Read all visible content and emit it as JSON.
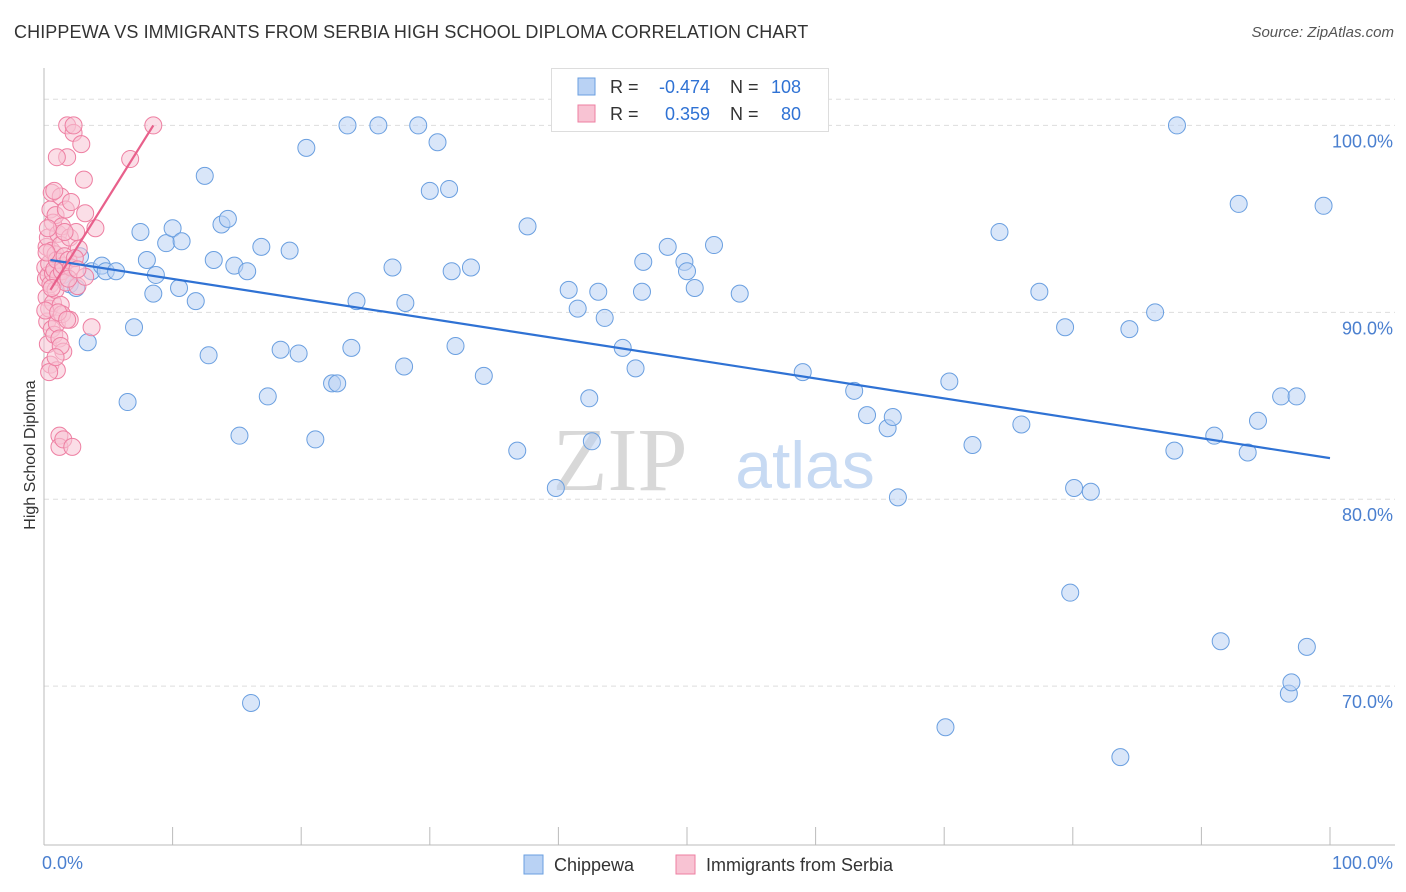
{
  "title": "CHIPPEWA VS IMMIGRANTS FROM SERBIA HIGH SCHOOL DIPLOMA CORRELATION CHART",
  "source": "Source: ZipAtlas.com",
  "watermark": {
    "zip": "ZIP",
    "atlas": "atlas"
  },
  "colors": {
    "blue": "#6a9fe0",
    "blue_fill": "#b9d2f4",
    "blue_line": "#2f72d4",
    "pink": "#ee7fa2",
    "pink_fill": "#f8c3d3",
    "pink_line": "#e8608b",
    "axis_text": "#4a7fcf",
    "grid": "#dddddd"
  },
  "legend": {
    "rows": [
      {
        "r_label": "R =",
        "r_value": "-0.474",
        "n_label": "N =",
        "n_value": "108"
      },
      {
        "r_label": "R =",
        "r_value": "0.359",
        "n_label": "N =",
        "n_value": "80"
      }
    ]
  },
  "bottom_legend": [
    "Chippewa",
    "Immigrants from Serbia"
  ],
  "chart_data": {
    "type": "scatter",
    "title": "CHIPPEWA VS IMMIGRANTS FROM SERBIA HIGH SCHOOL DIPLOMA CORRELATION CHART",
    "xlabel": "",
    "ylabel": "High School Diploma",
    "xlim": [
      0,
      100
    ],
    "ylim": [
      61.5,
      103.5
    ],
    "x_tick_labels": [
      "0.0%",
      "100.0%"
    ],
    "y_ticks": [
      70,
      80,
      90,
      100
    ],
    "y_tick_labels": [
      "70.0%",
      "80.0%",
      "90.0%",
      "100.0%"
    ],
    "grid": true,
    "series": [
      {
        "name": "Chippewa",
        "r": -0.474,
        "n": 108,
        "trend": [
          [
            0.5,
            92.8
          ],
          [
            100,
            82.2
          ]
        ],
        "points": [
          [
            1,
            92.5
          ],
          [
            1.5,
            92
          ],
          [
            2,
            91.5
          ],
          [
            2.5,
            91.3
          ],
          [
            2.8,
            93
          ],
          [
            3.4,
            88.4
          ],
          [
            3.7,
            92.2
          ],
          [
            4.5,
            92.5
          ],
          [
            4.8,
            92.2
          ],
          [
            5.6,
            92.2
          ],
          [
            6.5,
            85.2
          ],
          [
            7,
            89.2
          ],
          [
            7.5,
            94.3
          ],
          [
            8,
            92.8
          ],
          [
            8.5,
            91
          ],
          [
            8.7,
            92
          ],
          [
            9.5,
            93.7
          ],
          [
            10,
            94.5
          ],
          [
            10.5,
            91.3
          ],
          [
            10.7,
            93.8
          ],
          [
            11.8,
            90.6
          ],
          [
            12.5,
            97.3
          ],
          [
            12.8,
            87.7
          ],
          [
            13.2,
            92.8
          ],
          [
            13.8,
            94.7
          ],
          [
            14.3,
            95
          ],
          [
            14.8,
            92.5
          ],
          [
            15.2,
            83.4
          ],
          [
            15.8,
            92.2
          ],
          [
            16.1,
            69.1
          ],
          [
            16.9,
            93.5
          ],
          [
            17.4,
            85.5
          ],
          [
            18.4,
            88
          ],
          [
            19.1,
            93.3
          ],
          [
            19.8,
            87.8
          ],
          [
            20.4,
            98.8
          ],
          [
            21.1,
            83.2
          ],
          [
            22.4,
            86.2
          ],
          [
            22.8,
            86.2
          ],
          [
            23.6,
            100
          ],
          [
            23.9,
            88.1
          ],
          [
            24.3,
            90.6
          ],
          [
            26.0,
            100
          ],
          [
            27.1,
            92.4
          ],
          [
            28.0,
            87.1
          ],
          [
            28.1,
            90.5
          ],
          [
            29.1,
            100
          ],
          [
            30.0,
            96.5
          ],
          [
            30.6,
            99.1
          ],
          [
            31.5,
            96.6
          ],
          [
            31.7,
            92.2
          ],
          [
            32.0,
            88.2
          ],
          [
            33.2,
            92.4
          ],
          [
            34.2,
            86.6
          ],
          [
            36.8,
            82.6
          ],
          [
            37.6,
            94.6
          ],
          [
            39.8,
            80.6
          ],
          [
            40.8,
            91.2
          ],
          [
            41.5,
            90.2
          ],
          [
            42.4,
            85.4
          ],
          [
            42.6,
            83.1
          ],
          [
            43.1,
            91.1
          ],
          [
            43.6,
            89.7
          ],
          [
            45.0,
            88.1
          ],
          [
            46.0,
            87
          ],
          [
            46.5,
            91.1
          ],
          [
            46.6,
            92.7
          ],
          [
            48.5,
            93.5
          ],
          [
            49.8,
            92.7
          ],
          [
            50.0,
            92.2
          ],
          [
            50.6,
            91.3
          ],
          [
            52.1,
            93.6
          ],
          [
            54.1,
            91
          ],
          [
            59.0,
            86.8
          ],
          [
            63.0,
            85.8
          ],
          [
            64.0,
            84.5
          ],
          [
            65.6,
            83.8
          ],
          [
            66.0,
            84.4
          ],
          [
            66.4,
            80.1
          ],
          [
            70.4,
            86.3
          ],
          [
            72.2,
            82.9
          ],
          [
            74.3,
            94.3
          ],
          [
            76.0,
            84
          ],
          [
            77.4,
            91.1
          ],
          [
            79.4,
            89.2
          ],
          [
            79.8,
            75
          ],
          [
            80.1,
            80.6
          ],
          [
            81.4,
            80.4
          ],
          [
            84.4,
            89.1
          ],
          [
            86.4,
            90
          ],
          [
            87.9,
            82.6
          ],
          [
            88.1,
            100
          ],
          [
            91.0,
            83.4
          ],
          [
            91.5,
            72.4
          ],
          [
            92.9,
            95.8
          ],
          [
            93.6,
            82.5
          ],
          [
            94.4,
            84.2
          ],
          [
            96.2,
            85.5
          ],
          [
            96.8,
            69.6
          ],
          [
            97.0,
            70.2
          ],
          [
            97.4,
            85.5
          ],
          [
            98.2,
            72.1
          ],
          [
            99.5,
            95.7
          ],
          [
            70.1,
            67.8
          ],
          [
            83.7,
            66.2
          ]
        ]
      },
      {
        "name": "Immigrants from Serbia",
        "r": 0.359,
        "n": 80,
        "trend": [
          [
            0.5,
            91.2
          ],
          [
            8.5,
            100
          ]
        ],
        "points": [
          [
            0.1,
            92.4
          ],
          [
            0.15,
            91.8
          ],
          [
            0.2,
            90.8
          ],
          [
            0.2,
            93.5
          ],
          [
            0.25,
            89.5
          ],
          [
            0.3,
            88.3
          ],
          [
            0.3,
            94
          ],
          [
            0.35,
            92
          ],
          [
            0.4,
            90.2
          ],
          [
            0.4,
            92.6
          ],
          [
            0.5,
            91.5
          ],
          [
            0.5,
            87.2
          ],
          [
            0.5,
            95.5
          ],
          [
            0.6,
            93.3
          ],
          [
            0.6,
            89.1
          ],
          [
            0.6,
            96.4
          ],
          [
            0.7,
            94.8
          ],
          [
            0.7,
            92.1
          ],
          [
            0.7,
            90.5
          ],
          [
            0.8,
            92.3
          ],
          [
            0.8,
            88.8
          ],
          [
            0.9,
            93.1
          ],
          [
            0.9,
            91.2
          ],
          [
            0.9,
            95.2
          ],
          [
            1.0,
            92.8
          ],
          [
            1.0,
            89.4
          ],
          [
            1.0,
            86.9
          ],
          [
            1.1,
            94.2
          ],
          [
            1.1,
            91.9
          ],
          [
            1.2,
            88.6
          ],
          [
            1.2,
            83.4
          ],
          [
            1.2,
            82.8
          ],
          [
            1.3,
            93.6
          ],
          [
            1.3,
            90.4
          ],
          [
            1.3,
            96.2
          ],
          [
            1.4,
            92.2
          ],
          [
            1.4,
            89.9
          ],
          [
            1.4,
            94.6
          ],
          [
            1.5,
            92.5
          ],
          [
            1.5,
            87.9
          ],
          [
            1.5,
            83.2
          ],
          [
            1.6,
            93
          ],
          [
            1.7,
            91.6
          ],
          [
            1.7,
            95.5
          ],
          [
            1.8,
            98.3
          ],
          [
            1.8,
            100
          ],
          [
            1.9,
            92.8
          ],
          [
            2.0,
            94
          ],
          [
            2.0,
            89.6
          ],
          [
            2.1,
            92.4
          ],
          [
            2.1,
            95.9
          ],
          [
            2.2,
            82.8
          ],
          [
            2.3,
            99.6
          ],
          [
            2.3,
            100
          ],
          [
            2.5,
            94.3
          ],
          [
            2.6,
            91.4
          ],
          [
            2.7,
            93.4
          ],
          [
            2.9,
            99
          ],
          [
            3.1,
            97.1
          ],
          [
            3.2,
            91.9
          ],
          [
            3.2,
            95.3
          ],
          [
            3.7,
            89.2
          ],
          [
            4.0,
            94.5
          ],
          [
            6.7,
            98.2
          ],
          [
            8.5,
            100
          ],
          [
            0.1,
            90.1
          ],
          [
            0.4,
            86.8
          ],
          [
            0.8,
            96.5
          ],
          [
            1.0,
            98.3
          ],
          [
            1.6,
            94.3
          ],
          [
            0.3,
            94.5
          ],
          [
            0.6,
            91.3
          ],
          [
            1.1,
            90
          ],
          [
            1.9,
            91.8
          ],
          [
            2.4,
            92.9
          ],
          [
            1.3,
            88.2
          ],
          [
            0.9,
            87.6
          ],
          [
            1.8,
            89.6
          ],
          [
            0.2,
            93.2
          ],
          [
            2.6,
            92.3
          ]
        ]
      }
    ]
  }
}
